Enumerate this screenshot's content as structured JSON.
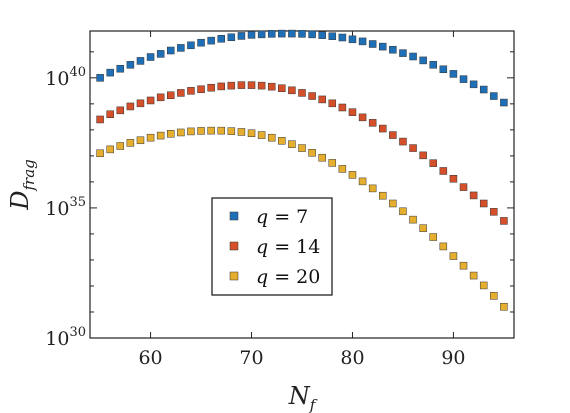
{
  "chart_data": {
    "type": "scatter",
    "xlabel": {
      "base": "N",
      "sub": "f"
    },
    "ylabel": {
      "base": "D",
      "sub": "frag"
    },
    "xlim": [
      54,
      96
    ],
    "ylim_log10": [
      30,
      41.8
    ],
    "y_scale": "log",
    "x_ticks": [
      {
        "value": 60,
        "label": "60"
      },
      {
        "value": 70,
        "label": "70"
      },
      {
        "value": 80,
        "label": "80"
      },
      {
        "value": 90,
        "label": "90"
      }
    ],
    "y_ticks": [
      {
        "exp": 30,
        "base": "10",
        "sup": "30"
      },
      {
        "exp": 35,
        "base": "10",
        "sup": "35"
      },
      {
        "exp": 40,
        "base": "10",
        "sup": "40"
      }
    ],
    "grid": false,
    "legend_position": "center-bottom",
    "series": [
      {
        "name": "q = 7",
        "label_var": "q",
        "label_rest": " = 7",
        "color": "#1f6fb6",
        "x": [
          55,
          56,
          57,
          58,
          59,
          60,
          61,
          62,
          63,
          64,
          65,
          66,
          67,
          68,
          69,
          70,
          71,
          72,
          73,
          74,
          75,
          76,
          77,
          78,
          79,
          80,
          81,
          82,
          83,
          84,
          85,
          86,
          87,
          88,
          89,
          90,
          91,
          92,
          93,
          94,
          95
        ],
        "log10_y": [
          40.0,
          40.2,
          40.35,
          40.5,
          40.65,
          40.8,
          40.92,
          41.05,
          41.15,
          41.25,
          41.35,
          41.43,
          41.5,
          41.56,
          41.61,
          41.65,
          41.67,
          41.69,
          41.7,
          41.7,
          41.69,
          41.67,
          41.64,
          41.6,
          41.55,
          41.48,
          41.4,
          41.3,
          41.2,
          41.08,
          40.95,
          40.82,
          40.67,
          40.5,
          40.33,
          40.15,
          39.95,
          39.75,
          39.55,
          39.3,
          39.05
        ]
      },
      {
        "name": "q = 14",
        "label_var": "q",
        "label_rest": " = 14",
        "color": "#d4502a",
        "x": [
          55,
          56,
          57,
          58,
          59,
          60,
          61,
          62,
          63,
          64,
          65,
          66,
          67,
          68,
          69,
          70,
          71,
          72,
          73,
          74,
          75,
          76,
          77,
          78,
          79,
          80,
          81,
          82,
          83,
          84,
          85,
          86,
          87,
          88,
          89,
          90,
          91,
          92,
          93,
          94,
          95
        ],
        "log10_y": [
          38.4,
          38.6,
          38.75,
          38.9,
          39.02,
          39.13,
          39.25,
          39.33,
          39.42,
          39.5,
          39.56,
          39.62,
          39.67,
          39.7,
          39.72,
          39.72,
          39.7,
          39.66,
          39.6,
          39.52,
          39.42,
          39.3,
          39.17,
          39.02,
          38.86,
          38.68,
          38.48,
          38.27,
          38.05,
          37.8,
          37.55,
          37.3,
          37.02,
          36.72,
          36.42,
          36.12,
          35.8,
          35.48,
          35.17,
          34.85,
          34.5
        ]
      },
      {
        "name": "q = 20",
        "label_var": "q",
        "label_rest": " = 20",
        "color": "#e6ae2e",
        "x": [
          55,
          56,
          57,
          58,
          59,
          60,
          61,
          62,
          63,
          64,
          65,
          66,
          67,
          68,
          69,
          70,
          71,
          72,
          73,
          74,
          75,
          76,
          77,
          78,
          79,
          80,
          81,
          82,
          83,
          84,
          85,
          86,
          87,
          88,
          89,
          90,
          91,
          92,
          93,
          94,
          95
        ],
        "log10_y": [
          37.1,
          37.25,
          37.38,
          37.5,
          37.6,
          37.7,
          37.78,
          37.85,
          37.9,
          37.94,
          37.96,
          37.97,
          37.97,
          37.95,
          37.92,
          37.87,
          37.8,
          37.7,
          37.58,
          37.45,
          37.3,
          37.12,
          36.93,
          36.73,
          36.5,
          36.27,
          36.02,
          35.75,
          35.47,
          35.17,
          34.87,
          34.55,
          34.22,
          33.88,
          33.52,
          33.15,
          32.78,
          32.4,
          32.02,
          31.62,
          31.2
        ]
      }
    ]
  }
}
